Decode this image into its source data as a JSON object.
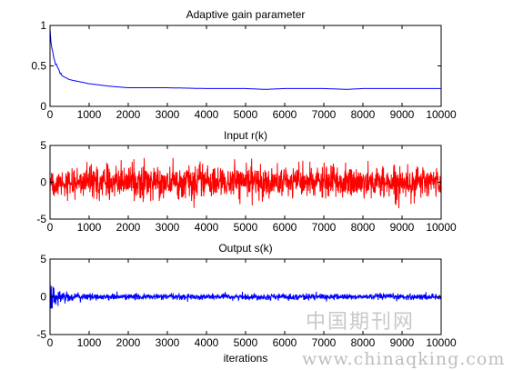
{
  "watermark": {
    "chinese": "中国期刊网",
    "url": "www.chinaqking.com"
  },
  "chart_data": [
    {
      "type": "line",
      "title": "Adaptive gain parameter",
      "xlabel": "",
      "ylabel": "",
      "xlim": [
        0,
        10000
      ],
      "ylim": [
        0,
        1
      ],
      "xticks": [
        "0",
        "1000",
        "2000",
        "3000",
        "4000",
        "5000",
        "6000",
        "7000",
        "8000",
        "9000",
        "10000"
      ],
      "yticks": [
        "0",
        "0.5",
        "1"
      ],
      "grid": false,
      "series": [
        {
          "color": "#0000ff",
          "x": [
            0,
            20,
            50,
            100,
            200,
            300,
            500,
            800,
            1000,
            1500,
            2000,
            3000,
            4000,
            5000,
            5500,
            6000,
            7000,
            7600,
            8000,
            9000,
            10000
          ],
          "y": [
            0.95,
            0.82,
            0.7,
            0.58,
            0.46,
            0.38,
            0.33,
            0.3,
            0.28,
            0.25,
            0.23,
            0.23,
            0.22,
            0.22,
            0.21,
            0.22,
            0.22,
            0.21,
            0.22,
            0.22,
            0.22
          ]
        }
      ]
    },
    {
      "type": "line",
      "title": "Input r(k)",
      "xlabel": "",
      "ylabel": "",
      "xlim": [
        0,
        10000
      ],
      "ylim": [
        -5,
        5
      ],
      "xticks": [
        "0",
        "1000",
        "2000",
        "3000",
        "4000",
        "5000",
        "6000",
        "7000",
        "8000",
        "9000",
        "10000"
      ],
      "yticks": [
        "-5",
        "0",
        "5"
      ],
      "grid": false,
      "series": [
        {
          "color": "#ff0000",
          "description_of_signal": "zero-mean random noise",
          "x": [
            0,
            10000
          ],
          "mean": 0,
          "band": [
            -2.2,
            2.2
          ],
          "peaks": [
            -3.7,
            3.3
          ]
        }
      ]
    },
    {
      "type": "line",
      "title": "Output s(k)",
      "xlabel": "iterations",
      "ylabel": "",
      "xlim": [
        0,
        10000
      ],
      "ylim": [
        -5,
        5
      ],
      "xticks": [
        "0",
        "1000",
        "2000",
        "3000",
        "4000",
        "5000",
        "6000",
        "7000",
        "8000",
        "9000",
        "10000"
      ],
      "yticks": [
        "-5",
        "0",
        "5"
      ],
      "grid": false,
      "series": [
        {
          "color": "#0000ff",
          "x": [
            0,
            10000
          ],
          "mean": 0,
          "initial_band": [
            -1.6,
            2.2
          ],
          "settled_band": [
            -0.6,
            0.6
          ]
        }
      ]
    }
  ]
}
